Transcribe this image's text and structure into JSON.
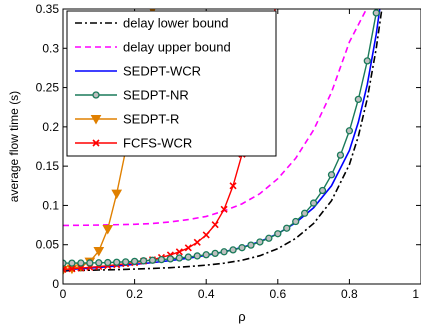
{
  "chart_data": {
    "type": "line",
    "title": "",
    "xlabel": "ρ",
    "ylabel": "average flow time (s)",
    "xlim": [
      0,
      1
    ],
    "ylim": [
      0,
      0.35
    ],
    "grid": false,
    "legend_position": "top-left",
    "xticks": [
      0,
      0.2,
      0.4,
      0.6,
      0.8,
      1
    ],
    "xtick_labels": [
      "0",
      "0.2",
      "0.4",
      "0.6",
      "0.8",
      "1"
    ],
    "yticks": [
      0,
      0.05,
      0.1,
      0.15,
      0.2,
      0.25,
      0.3,
      0.35
    ],
    "ytick_labels": [
      "0",
      "0.05",
      "0.1",
      "0.15",
      "0.2",
      "0.25",
      "0.3",
      "0.35"
    ],
    "series": [
      {
        "name": "delay lower bound",
        "color": "#000000",
        "line": "dashdot",
        "marker": "none",
        "x": [
          0,
          0.05,
          0.1,
          0.15,
          0.2,
          0.25,
          0.3,
          0.35,
          0.4,
          0.45,
          0.5,
          0.55,
          0.6,
          0.65,
          0.7,
          0.75,
          0.8,
          0.825,
          0.85,
          0.875,
          0.9
        ],
        "y": [
          0.0168,
          0.0173,
          0.0178,
          0.0183,
          0.019,
          0.0198,
          0.0208,
          0.0222,
          0.024,
          0.0265,
          0.0302,
          0.036,
          0.045,
          0.058,
          0.077,
          0.106,
          0.152,
          0.188,
          0.236,
          0.3,
          0.38
        ]
      },
      {
        "name": "delay upper bound",
        "color": "#ff00ff",
        "line": "dashed",
        "marker": "none",
        "x": [
          0,
          0.1,
          0.2,
          0.25,
          0.3,
          0.35,
          0.4,
          0.45,
          0.5,
          0.55,
          0.6,
          0.65,
          0.7,
          0.75,
          0.8,
          0.85,
          0.875
        ],
        "y": [
          0.0745,
          0.075,
          0.076,
          0.077,
          0.079,
          0.082,
          0.086,
          0.093,
          0.102,
          0.115,
          0.134,
          0.16,
          0.196,
          0.244,
          0.308,
          0.352,
          0.37
        ]
      },
      {
        "name": "SEDPT-WCR",
        "color": "#0000ff",
        "line": "solid",
        "marker": "none",
        "x": [
          0,
          0.05,
          0.1,
          0.15,
          0.2,
          0.25,
          0.3,
          0.35,
          0.4,
          0.45,
          0.5,
          0.55,
          0.6,
          0.65,
          0.7,
          0.75,
          0.8,
          0.825,
          0.85,
          0.875,
          0.9
        ],
        "y": [
          0.018,
          0.0195,
          0.021,
          0.023,
          0.025,
          0.0272,
          0.0298,
          0.0328,
          0.0365,
          0.041,
          0.0465,
          0.054,
          0.064,
          0.078,
          0.097,
          0.125,
          0.17,
          0.206,
          0.254,
          0.318,
          0.4
        ]
      },
      {
        "name": "SEDPT-NR",
        "color": "#1a7a5a",
        "line": "solid",
        "marker": "circle",
        "x": [
          0,
          0.025,
          0.05,
          0.075,
          0.1,
          0.125,
          0.15,
          0.175,
          0.2,
          0.225,
          0.25,
          0.275,
          0.3,
          0.325,
          0.35,
          0.375,
          0.4,
          0.425,
          0.45,
          0.475,
          0.5,
          0.525,
          0.55,
          0.575,
          0.6,
          0.625,
          0.65,
          0.675,
          0.7,
          0.725,
          0.75,
          0.775,
          0.8,
          0.825,
          0.85,
          0.875
        ],
        "y": [
          0.0265,
          0.0266,
          0.0267,
          0.0268,
          0.027,
          0.0273,
          0.0277,
          0.0282,
          0.0288,
          0.0295,
          0.0302,
          0.031,
          0.032,
          0.0331,
          0.0343,
          0.0357,
          0.0372,
          0.039,
          0.041,
          0.0434,
          0.0462,
          0.0495,
          0.0535,
          0.0582,
          0.064,
          0.071,
          0.0795,
          0.09,
          0.103,
          0.119,
          0.139,
          0.164,
          0.195,
          0.235,
          0.284,
          0.345
        ]
      },
      {
        "name": "SEDPT-R",
        "color": "#e08000",
        "line": "solid",
        "marker": "triangle-down",
        "x": [
          0,
          0.025,
          0.05,
          0.075,
          0.1,
          0.125,
          0.15,
          0.175,
          0.2,
          0.225,
          0.25
        ],
        "y": [
          0.018,
          0.0195,
          0.0225,
          0.0285,
          0.042,
          0.07,
          0.115,
          0.17,
          0.235,
          0.3,
          0.35
        ]
      },
      {
        "name": "FCFS-WCR",
        "color": "#ff0000",
        "line": "solid",
        "marker": "x",
        "x": [
          0,
          0.025,
          0.05,
          0.075,
          0.1,
          0.125,
          0.15,
          0.175,
          0.2,
          0.225,
          0.25,
          0.275,
          0.3,
          0.325,
          0.35,
          0.375,
          0.4,
          0.425,
          0.45,
          0.475,
          0.5,
          0.525,
          0.55,
          0.575,
          0.6
        ],
        "y": [
          0.0185,
          0.0194,
          0.0203,
          0.0212,
          0.0222,
          0.0233,
          0.0245,
          0.0258,
          0.0272,
          0.029,
          0.031,
          0.0338,
          0.037,
          0.041,
          0.046,
          0.053,
          0.0625,
          0.0755,
          0.095,
          0.125,
          0.165,
          0.215,
          0.27,
          0.325,
          0.36
        ]
      }
    ]
  }
}
